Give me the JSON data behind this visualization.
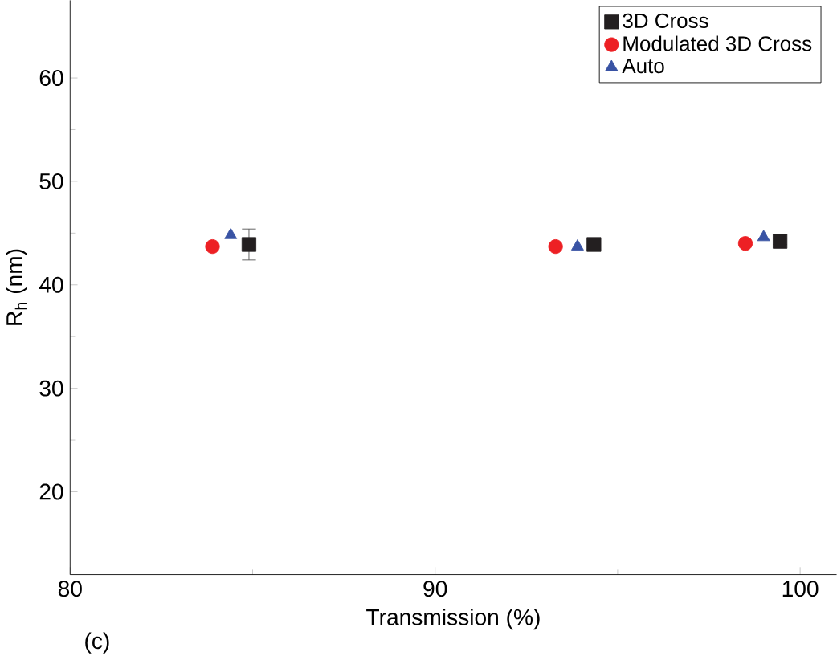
{
  "chart_data": {
    "type": "scatter",
    "xlabel": "Transmission (%)",
    "ylabel": "R$_{h}$ (nm)",
    "annotations": [
      "(c)"
    ],
    "xlim": [
      80,
      101
    ],
    "ylim": [
      12,
      67.5
    ],
    "xticks": [
      80,
      90,
      100
    ],
    "yticks": [
      20,
      30,
      40,
      50,
      60
    ],
    "legend": "top right",
    "grid": false,
    "series": [
      {
        "name": "3D Cross",
        "color": "#231f20",
        "marker": "square",
        "x": [
          84.9,
          94.35,
          99.45
        ],
        "values": [
          43.9,
          43.9,
          44.2
        ],
        "errors": [
          1.5,
          0.5,
          0.3
        ]
      },
      {
        "name": "Modulated 3D Cross",
        "color": "#ed2024",
        "marker": "circle",
        "x": [
          83.9,
          93.3,
          98.5
        ],
        "values": [
          43.7,
          43.7,
          44.0
        ]
      },
      {
        "name": "Auto",
        "color": "#3953a4",
        "marker": "triangle",
        "x": [
          84.4,
          93.9,
          99.0
        ],
        "values": [
          44.8,
          43.7,
          44.6
        ]
      }
    ]
  }
}
